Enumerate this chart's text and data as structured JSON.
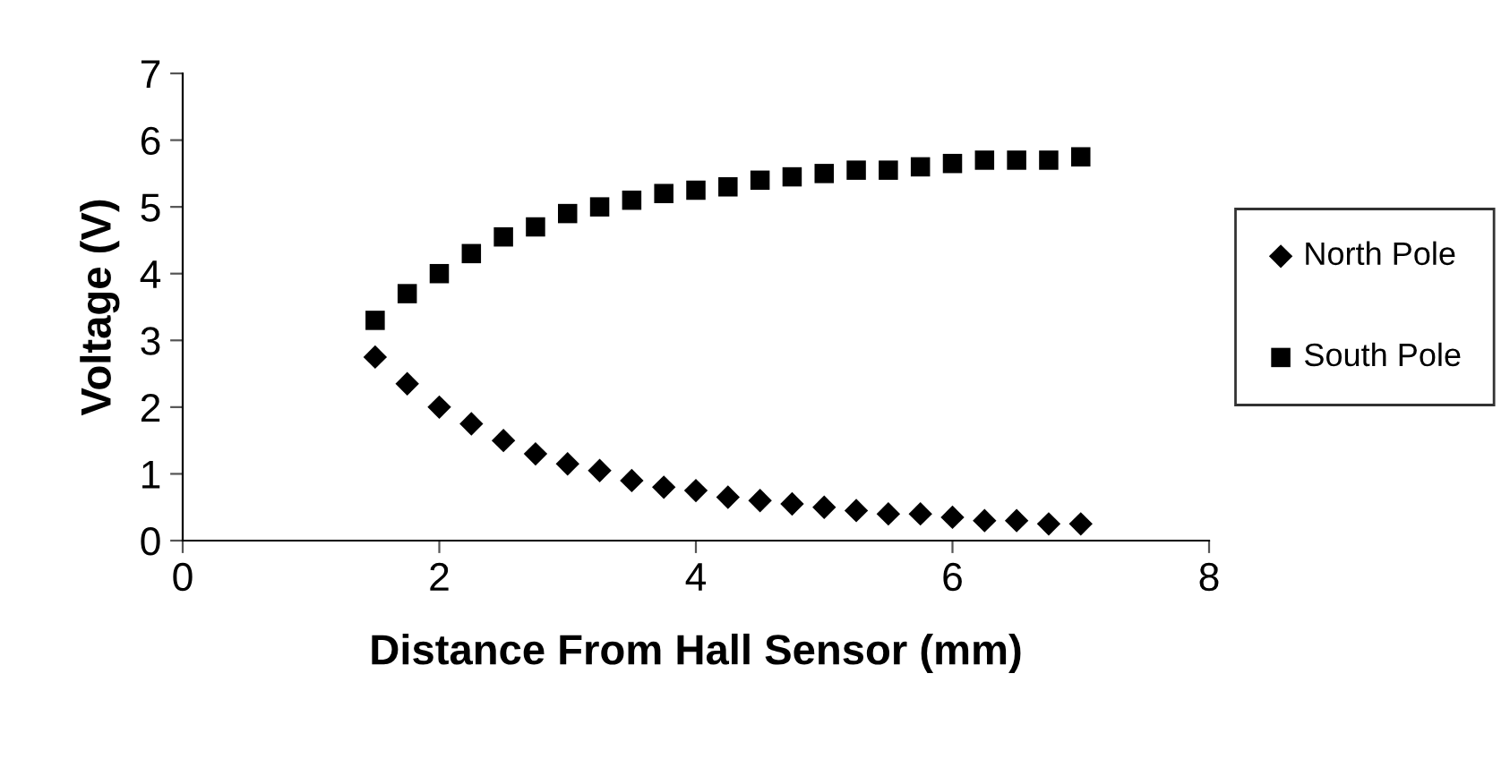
{
  "chart_data": {
    "type": "scatter",
    "xlabel": "Distance From Hall Sensor (mm)",
    "ylabel": "Voltage (V)",
    "x": [
      1.5,
      1.75,
      2.0,
      2.25,
      2.5,
      2.75,
      3.0,
      3.25,
      3.5,
      3.75,
      4.0,
      4.25,
      4.5,
      4.75,
      5.0,
      5.25,
      5.5,
      5.75,
      6.0,
      6.25,
      6.5,
      6.75,
      7.0
    ],
    "series": [
      {
        "name": "North Pole",
        "color": "#000000",
        "marker": "diamond",
        "values": [
          2.75,
          2.35,
          2.0,
          1.75,
          1.5,
          1.3,
          1.15,
          1.05,
          0.9,
          0.8,
          0.75,
          0.65,
          0.6,
          0.55,
          0.5,
          0.45,
          0.4,
          0.4,
          0.35,
          0.3,
          0.3,
          0.25,
          0.25
        ]
      },
      {
        "name": "South Pole",
        "color": "#000000",
        "marker": "square",
        "values": [
          3.3,
          3.7,
          4.0,
          4.3,
          4.55,
          4.7,
          4.9,
          5.0,
          5.1,
          5.2,
          5.25,
          5.3,
          5.4,
          5.45,
          5.5,
          5.55,
          5.55,
          5.6,
          5.65,
          5.7,
          5.7,
          5.7,
          5.75
        ]
      }
    ],
    "xlim": [
      0,
      8
    ],
    "xticks": [
      0,
      2,
      4,
      6,
      8
    ],
    "ylim": [
      0,
      7
    ],
    "yticks": [
      0,
      1,
      2,
      3,
      4,
      5,
      6,
      7
    ],
    "grid": false,
    "legend": "right"
  }
}
